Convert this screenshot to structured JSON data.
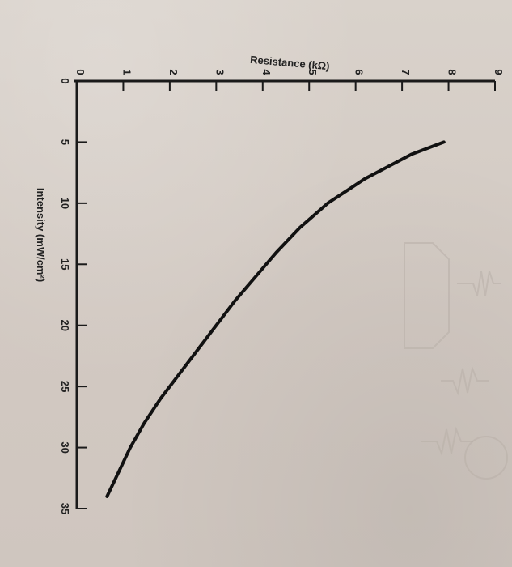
{
  "chart_data": {
    "type": "line",
    "title": "",
    "xlabel": "Intensity (mW/cm²)",
    "ylabel": "Resistance (kΩ)",
    "xlim": [
      0,
      35
    ],
    "ylim": [
      0,
      9
    ],
    "x_ticks": [
      0,
      5,
      10,
      15,
      20,
      25,
      30,
      35
    ],
    "y_ticks": [
      0,
      1,
      2,
      3,
      4,
      5,
      6,
      7,
      8,
      9
    ],
    "grid": false,
    "orientation": "rotated 90° clockwise",
    "series": [
      {
        "name": "",
        "x": [
          5,
          6,
          7,
          8,
          9,
          10,
          12,
          14,
          16,
          18,
          20,
          22,
          24,
          26,
          28,
          30,
          32,
          34
        ],
        "y": [
          7.9,
          7.2,
          6.7,
          6.2,
          5.8,
          5.4,
          4.8,
          4.3,
          3.85,
          3.4,
          3.0,
          2.6,
          2.2,
          1.8,
          1.45,
          1.15,
          0.9,
          0.65
        ]
      }
    ]
  }
}
